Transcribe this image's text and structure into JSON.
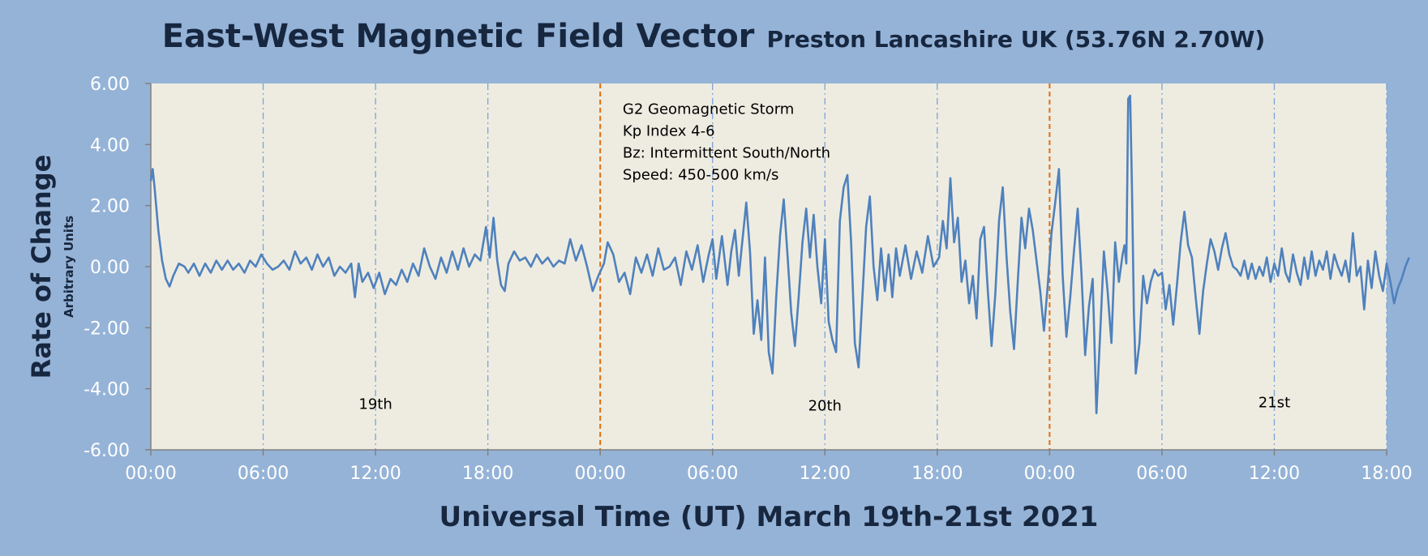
{
  "chart_data": {
    "type": "line",
    "title": "East-West Magnetic Field Vector",
    "subtitle": "Preston Lancashire UK (53.76N 2.70W)",
    "xlabel": "Universal Time (UT) March 19th-21st 2021",
    "ylabel": "Rate of Change",
    "ylabel_sub": "Arbitrary Units",
    "ylim": [
      -6,
      6
    ],
    "xlim_hours": [
      0,
      66
    ],
    "y_ticks": [
      "6.00",
      "4.00",
      "2.00",
      "0.00",
      "-2.00",
      "-4.00",
      "-6.00"
    ],
    "y_tick_values": [
      6,
      4,
      2,
      0,
      -2,
      -4,
      -6
    ],
    "x_ticks": [
      "00:00",
      "06:00",
      "12:00",
      "18:00",
      "00:00",
      "06:00",
      "12:00",
      "18:00",
      "00:00",
      "06:00",
      "12:00",
      "18:00"
    ],
    "x_tick_hours": [
      0,
      6,
      12,
      18,
      24,
      30,
      36,
      42,
      48,
      54,
      60,
      66
    ],
    "day_markers_hours": [
      24,
      48
    ],
    "day_labels": [
      {
        "text": "19th",
        "hour": 12,
        "y": -4.5
      },
      {
        "text": "20th",
        "hour": 36,
        "y": -4.55
      },
      {
        "text": "21st",
        "hour": 60,
        "y": -4.45
      }
    ],
    "annotation": {
      "hour": 25.2,
      "y": 5.0,
      "lines": [
        "G2 Geomagnetic Storm",
        "Kp Index 4-6",
        "Bz: Intermittent South/North",
        "Speed: 450-500 km/s"
      ]
    },
    "grid": "vertical dash-dot every 6 hours",
    "series": [
      {
        "color": "#4f81bd",
        "points": [
          [
            0.0,
            2.8
          ],
          [
            0.1,
            3.2
          ],
          [
            0.2,
            2.6
          ],
          [
            0.4,
            1.2
          ],
          [
            0.6,
            0.2
          ],
          [
            0.8,
            -0.4
          ],
          [
            1.0,
            -0.65
          ],
          [
            1.2,
            -0.3
          ],
          [
            1.5,
            0.1
          ],
          [
            1.8,
            0.0
          ],
          [
            2.0,
            -0.2
          ],
          [
            2.3,
            0.1
          ],
          [
            2.6,
            -0.3
          ],
          [
            2.9,
            0.1
          ],
          [
            3.2,
            -0.2
          ],
          [
            3.5,
            0.2
          ],
          [
            3.8,
            -0.1
          ],
          [
            4.1,
            0.2
          ],
          [
            4.4,
            -0.1
          ],
          [
            4.7,
            0.1
          ],
          [
            5.0,
            -0.2
          ],
          [
            5.3,
            0.2
          ],
          [
            5.6,
            0.0
          ],
          [
            5.9,
            0.4
          ],
          [
            6.2,
            0.1
          ],
          [
            6.5,
            -0.1
          ],
          [
            6.8,
            0.0
          ],
          [
            7.1,
            0.2
          ],
          [
            7.4,
            -0.1
          ],
          [
            7.7,
            0.5
          ],
          [
            8.0,
            0.1
          ],
          [
            8.3,
            0.3
          ],
          [
            8.6,
            -0.1
          ],
          [
            8.9,
            0.4
          ],
          [
            9.2,
            0.0
          ],
          [
            9.5,
            0.3
          ],
          [
            9.8,
            -0.3
          ],
          [
            10.1,
            0.0
          ],
          [
            10.4,
            -0.2
          ],
          [
            10.7,
            0.1
          ],
          [
            10.9,
            -1.0
          ],
          [
            11.1,
            0.1
          ],
          [
            11.3,
            -0.5
          ],
          [
            11.6,
            -0.2
          ],
          [
            11.9,
            -0.7
          ],
          [
            12.2,
            -0.2
          ],
          [
            12.5,
            -0.9
          ],
          [
            12.8,
            -0.4
          ],
          [
            13.1,
            -0.6
          ],
          [
            13.4,
            -0.1
          ],
          [
            13.7,
            -0.5
          ],
          [
            14.0,
            0.1
          ],
          [
            14.3,
            -0.3
          ],
          [
            14.6,
            0.6
          ],
          [
            14.9,
            0.0
          ],
          [
            15.2,
            -0.4
          ],
          [
            15.5,
            0.3
          ],
          [
            15.8,
            -0.2
          ],
          [
            16.1,
            0.5
          ],
          [
            16.4,
            -0.1
          ],
          [
            16.7,
            0.6
          ],
          [
            17.0,
            0.0
          ],
          [
            17.3,
            0.4
          ],
          [
            17.6,
            0.2
          ],
          [
            17.9,
            1.3
          ],
          [
            18.1,
            0.3
          ],
          [
            18.3,
            1.6
          ],
          [
            18.5,
            0.2
          ],
          [
            18.7,
            -0.6
          ],
          [
            18.9,
            -0.8
          ],
          [
            19.1,
            0.1
          ],
          [
            19.4,
            0.5
          ],
          [
            19.7,
            0.2
          ],
          [
            20.0,
            0.3
          ],
          [
            20.3,
            0.0
          ],
          [
            20.6,
            0.4
          ],
          [
            20.9,
            0.1
          ],
          [
            21.2,
            0.3
          ],
          [
            21.5,
            0.0
          ],
          [
            21.8,
            0.2
          ],
          [
            22.1,
            0.1
          ],
          [
            22.4,
            0.9
          ],
          [
            22.7,
            0.2
          ],
          [
            23.0,
            0.7
          ],
          [
            23.3,
            0.0
          ],
          [
            23.6,
            -0.8
          ],
          [
            23.9,
            -0.3
          ],
          [
            24.2,
            0.1
          ],
          [
            24.4,
            0.8
          ],
          [
            24.7,
            0.4
          ],
          [
            25.0,
            -0.5
          ],
          [
            25.3,
            -0.2
          ],
          [
            25.6,
            -0.9
          ],
          [
            25.9,
            0.3
          ],
          [
            26.2,
            -0.2
          ],
          [
            26.5,
            0.4
          ],
          [
            26.8,
            -0.3
          ],
          [
            27.1,
            0.6
          ],
          [
            27.4,
            -0.1
          ],
          [
            27.7,
            0.0
          ],
          [
            28.0,
            0.3
          ],
          [
            28.3,
            -0.6
          ],
          [
            28.6,
            0.5
          ],
          [
            28.9,
            -0.1
          ],
          [
            29.2,
            0.7
          ],
          [
            29.5,
            -0.5
          ],
          [
            29.8,
            0.4
          ],
          [
            30.0,
            0.9
          ],
          [
            30.2,
            -0.4
          ],
          [
            30.5,
            1.0
          ],
          [
            30.8,
            -0.6
          ],
          [
            31.0,
            0.5
          ],
          [
            31.2,
            1.2
          ],
          [
            31.4,
            -0.3
          ],
          [
            31.6,
            0.9
          ],
          [
            31.8,
            2.1
          ],
          [
            32.0,
            0.5
          ],
          [
            32.2,
            -2.2
          ],
          [
            32.4,
            -1.1
          ],
          [
            32.6,
            -2.4
          ],
          [
            32.8,
            0.3
          ],
          [
            33.0,
            -2.8
          ],
          [
            33.2,
            -3.5
          ],
          [
            33.4,
            -1.0
          ],
          [
            33.6,
            1.0
          ],
          [
            33.8,
            2.2
          ],
          [
            34.0,
            0.4
          ],
          [
            34.2,
            -1.5
          ],
          [
            34.4,
            -2.6
          ],
          [
            34.6,
            -1.0
          ],
          [
            34.8,
            0.8
          ],
          [
            35.0,
            1.9
          ],
          [
            35.2,
            0.3
          ],
          [
            35.4,
            1.7
          ],
          [
            35.6,
            0.0
          ],
          [
            35.8,
            -1.2
          ],
          [
            36.0,
            0.9
          ],
          [
            36.2,
            -1.8
          ],
          [
            36.4,
            -2.4
          ],
          [
            36.6,
            -2.8
          ],
          [
            36.8,
            1.5
          ],
          [
            37.0,
            2.6
          ],
          [
            37.2,
            3.0
          ],
          [
            37.4,
            0.8
          ],
          [
            37.6,
            -2.5
          ],
          [
            37.8,
            -3.3
          ],
          [
            38.0,
            -1.0
          ],
          [
            38.2,
            1.3
          ],
          [
            38.4,
            2.3
          ],
          [
            38.6,
            0.0
          ],
          [
            38.8,
            -1.1
          ],
          [
            39.0,
            0.6
          ],
          [
            39.2,
            -0.8
          ],
          [
            39.4,
            0.4
          ],
          [
            39.6,
            -1.0
          ],
          [
            39.8,
            0.6
          ],
          [
            40.0,
            -0.3
          ],
          [
            40.3,
            0.7
          ],
          [
            40.6,
            -0.4
          ],
          [
            40.9,
            0.5
          ],
          [
            41.2,
            -0.2
          ],
          [
            41.5,
            1.0
          ],
          [
            41.8,
            0.0
          ],
          [
            42.1,
            0.3
          ],
          [
            42.3,
            1.5
          ],
          [
            42.5,
            0.6
          ],
          [
            42.7,
            2.9
          ],
          [
            42.9,
            0.8
          ],
          [
            43.1,
            1.6
          ],
          [
            43.3,
            -0.5
          ],
          [
            43.5,
            0.2
          ],
          [
            43.7,
            -1.2
          ],
          [
            43.9,
            -0.3
          ],
          [
            44.1,
            -1.7
          ],
          [
            44.3,
            0.9
          ],
          [
            44.5,
            1.3
          ],
          [
            44.7,
            -0.8
          ],
          [
            44.9,
            -2.6
          ],
          [
            45.1,
            -0.9
          ],
          [
            45.3,
            1.5
          ],
          [
            45.5,
            2.6
          ],
          [
            45.7,
            0.3
          ],
          [
            45.9,
            -1.5
          ],
          [
            46.1,
            -2.7
          ],
          [
            46.3,
            -0.5
          ],
          [
            46.5,
            1.6
          ],
          [
            46.7,
            0.6
          ],
          [
            46.9,
            1.9
          ],
          [
            47.1,
            1.2
          ],
          [
            47.3,
            0.2
          ],
          [
            47.5,
            -0.8
          ],
          [
            47.7,
            -2.1
          ],
          [
            47.9,
            -0.6
          ],
          [
            48.1,
            1.1
          ],
          [
            48.3,
            2.1
          ],
          [
            48.5,
            3.2
          ],
          [
            48.7,
            -0.3
          ],
          [
            48.9,
            -2.3
          ],
          [
            49.1,
            -1.0
          ],
          [
            49.3,
            0.5
          ],
          [
            49.5,
            1.9
          ],
          [
            49.7,
            -0.2
          ],
          [
            49.9,
            -2.9
          ],
          [
            50.1,
            -1.3
          ],
          [
            50.3,
            -0.4
          ],
          [
            50.5,
            -4.8
          ],
          [
            50.7,
            -2.2
          ],
          [
            50.9,
            0.5
          ],
          [
            51.1,
            -0.8
          ],
          [
            51.3,
            -2.5
          ],
          [
            51.5,
            0.8
          ],
          [
            51.7,
            -0.5
          ],
          [
            51.9,
            0.4
          ],
          [
            52.0,
            0.7
          ],
          [
            52.1,
            0.1
          ],
          [
            52.2,
            5.5
          ],
          [
            52.3,
            5.6
          ],
          [
            52.4,
            2.5
          ],
          [
            52.5,
            -1.5
          ],
          [
            52.6,
            -3.5
          ],
          [
            52.8,
            -2.5
          ],
          [
            53.0,
            -0.3
          ],
          [
            53.2,
            -1.2
          ],
          [
            53.4,
            -0.5
          ],
          [
            53.6,
            -0.1
          ],
          [
            53.8,
            -0.3
          ],
          [
            54.0,
            -0.2
          ],
          [
            54.2,
            -1.4
          ],
          [
            54.4,
            -0.6
          ],
          [
            54.6,
            -1.9
          ],
          [
            54.8,
            -0.6
          ],
          [
            55.0,
            0.8
          ],
          [
            55.2,
            1.8
          ],
          [
            55.4,
            0.7
          ],
          [
            55.6,
            0.3
          ],
          [
            55.8,
            -1.0
          ],
          [
            56.0,
            -2.2
          ],
          [
            56.2,
            -0.8
          ],
          [
            56.4,
            0.1
          ],
          [
            56.6,
            0.9
          ],
          [
            56.8,
            0.5
          ],
          [
            57.0,
            -0.1
          ],
          [
            57.2,
            0.6
          ],
          [
            57.4,
            1.1
          ],
          [
            57.6,
            0.4
          ],
          [
            57.8,
            0.0
          ],
          [
            58.0,
            -0.1
          ],
          [
            58.2,
            -0.3
          ],
          [
            58.4,
            0.2
          ],
          [
            58.6,
            -0.4
          ],
          [
            58.8,
            0.1
          ],
          [
            59.0,
            -0.4
          ],
          [
            59.2,
            0.0
          ],
          [
            59.4,
            -0.3
          ],
          [
            59.6,
            0.3
          ],
          [
            59.8,
            -0.5
          ],
          [
            60.0,
            0.1
          ],
          [
            60.2,
            -0.3
          ],
          [
            60.4,
            0.6
          ],
          [
            60.6,
            -0.2
          ],
          [
            60.8,
            -0.5
          ],
          [
            61.0,
            0.4
          ],
          [
            61.2,
            -0.2
          ],
          [
            61.4,
            -0.6
          ],
          [
            61.6,
            0.3
          ],
          [
            61.8,
            -0.4
          ],
          [
            62.0,
            0.5
          ],
          [
            62.2,
            -0.3
          ],
          [
            62.4,
            0.2
          ],
          [
            62.6,
            -0.1
          ],
          [
            62.8,
            0.5
          ],
          [
            63.0,
            -0.4
          ],
          [
            63.2,
            0.4
          ],
          [
            63.4,
            0.0
          ],
          [
            63.6,
            -0.3
          ],
          [
            63.8,
            0.2
          ],
          [
            64.0,
            -0.5
          ],
          [
            64.2,
            1.1
          ],
          [
            64.4,
            -0.3
          ],
          [
            64.6,
            0.0
          ],
          [
            64.8,
            -1.4
          ],
          [
            65.0,
            0.2
          ],
          [
            65.2,
            -0.7
          ],
          [
            65.4,
            0.5
          ],
          [
            65.6,
            -0.3
          ],
          [
            65.8,
            -0.8
          ],
          [
            66.0,
            0.1
          ],
          [
            66.2,
            -0.5
          ],
          [
            66.4,
            -1.2
          ],
          [
            66.6,
            -0.7
          ],
          [
            66.8,
            -0.4
          ],
          [
            67.0,
            0.0
          ],
          [
            67.2,
            0.3
          ]
        ]
      }
    ]
  }
}
